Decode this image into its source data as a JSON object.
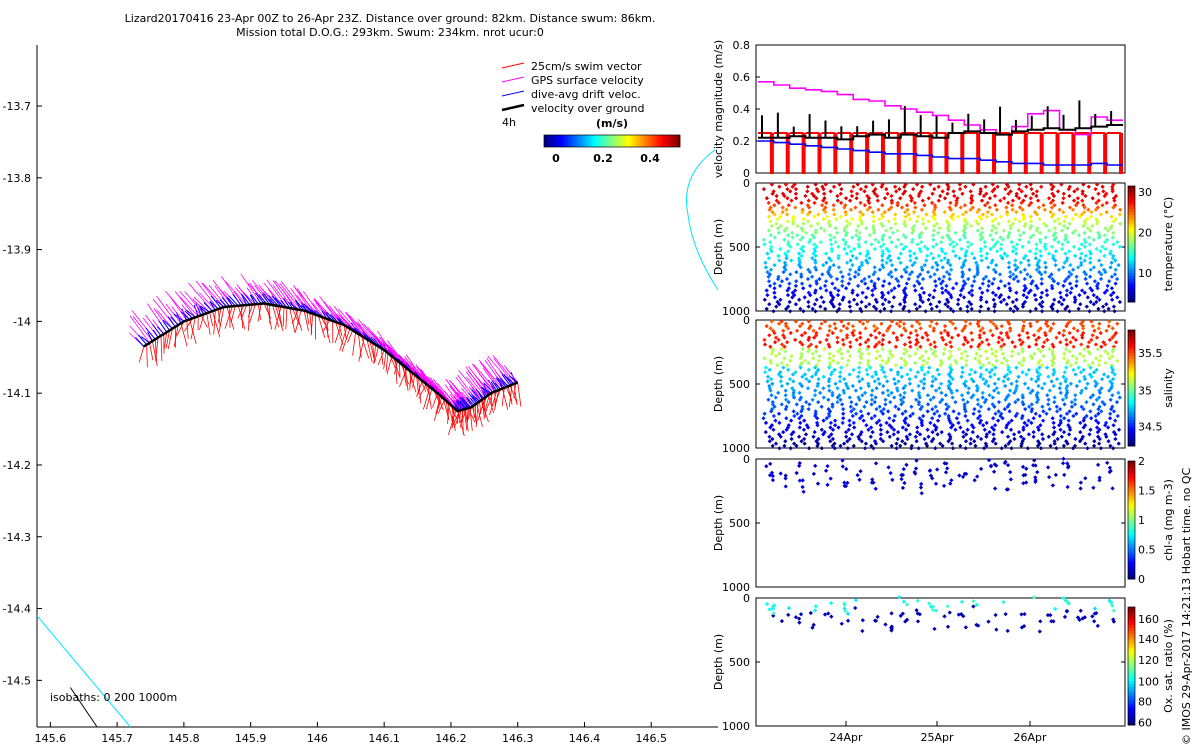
{
  "title_line1": "Lizard20170416 23-Apr 00Z to 26-Apr 23Z. Distance over ground: 82km. Distance swum: 86km.",
  "title_line2": "Mission total D.O.G.: 293km. Swum: 234km. nrot ucur:0",
  "side_label": "© IMOS 29-Apr-2017 14:21:13 Hobart time. no QC",
  "colors": {
    "swim": "#ff0000",
    "gps": "#ff00ff",
    "drift": "#0000ff",
    "ground": "#000000",
    "isobath": "#00e5ff"
  },
  "chart_data": [
    {
      "type": "map",
      "name": "track",
      "xlim": [
        145.58,
        146.6
      ],
      "ylim": [
        -14.565,
        -13.615
      ],
      "xticks": [
        "145.6",
        "145.7",
        "145.8",
        "145.9",
        "146",
        "146.1",
        "146.2",
        "146.3",
        "146.4",
        "146.5"
      ],
      "yticks": [
        "-13.7",
        "-13.8",
        "-13.9",
        "-14",
        "-14.1",
        "-14.2",
        "-14.3",
        "-14.4",
        "-14.5"
      ],
      "legend": [
        "25cm/s swim vector",
        "GPS surface velocity",
        "dive-avg drift veloc.",
        "velocity over ground"
      ],
      "legend_scale_label": "4h",
      "colorbar_label": "(m/s)",
      "colorbar_ticks": [
        "0",
        "0.2",
        "0.4"
      ],
      "isobaths_label": "isobaths: 0   200  1000m",
      "track": [
        [
          145.74,
          -14.035
        ],
        [
          145.8,
          -14.0
        ],
        [
          145.86,
          -13.98
        ],
        [
          145.92,
          -13.975
        ],
        [
          145.98,
          -13.985
        ],
        [
          146.04,
          -14.005
        ],
        [
          146.1,
          -14.04
        ],
        [
          146.14,
          -14.07
        ],
        [
          146.18,
          -14.1
        ],
        [
          146.21,
          -14.125
        ],
        [
          146.23,
          -14.12
        ],
        [
          146.26,
          -14.1
        ],
        [
          146.3,
          -14.085
        ]
      ],
      "isobath_1000": [
        [
          145.58,
          -14.41
        ],
        [
          145.72,
          -14.565
        ]
      ],
      "isobath_0": [
        [
          145.63,
          -14.51
        ],
        [
          145.67,
          -14.565
        ]
      ]
    },
    {
      "type": "line",
      "name": "velocity",
      "ylabel": "velocity magnitude (m/s)",
      "ylim": [
        0,
        0.8
      ],
      "yticks": [
        "0",
        "0.2",
        "0.4",
        "0.6",
        "0.8"
      ],
      "series": [
        {
          "name": "GPS surface velocity",
          "values": [
            0.57,
            0.55,
            0.53,
            0.52,
            0.51,
            0.49,
            0.46,
            0.45,
            0.42,
            0.4,
            0.38,
            0.36,
            0.33,
            0.3,
            0.27,
            0.24,
            0.29,
            0.37,
            0.39,
            0.27,
            0.24,
            0.35,
            0.33
          ]
        },
        {
          "name": "velocity over ground",
          "values": [
            0.22,
            0.22,
            0.23,
            0.22,
            0.22,
            0.21,
            0.23,
            0.24,
            0.22,
            0.24,
            0.23,
            0.22,
            0.25,
            0.26,
            0.25,
            0.24,
            0.26,
            0.27,
            0.28,
            0.27,
            0.28,
            0.29,
            0.3
          ]
        },
        {
          "name": "swim",
          "values": [
            0.25,
            0.25,
            0.25,
            0.25,
            0.25,
            0.25,
            0.25,
            0.25,
            0.25,
            0.25,
            0.25,
            0.25,
            0.25,
            0.25,
            0.25,
            0.25,
            0.25,
            0.25,
            0.25,
            0.25,
            0.25,
            0.25,
            0.25
          ]
        },
        {
          "name": "dive-avg drift veloc.",
          "values": [
            0.2,
            0.19,
            0.18,
            0.17,
            0.16,
            0.15,
            0.14,
            0.13,
            0.12,
            0.12,
            0.11,
            0.1,
            0.09,
            0.09,
            0.08,
            0.07,
            0.06,
            0.06,
            0.05,
            0.05,
            0.05,
            0.06,
            0.05
          ]
        }
      ]
    },
    {
      "type": "scatter",
      "name": "temperature",
      "ylabel": "Depth (m)",
      "yticks": [
        "0",
        "500",
        "1000"
      ],
      "ylim": [
        0,
        1000
      ],
      "profiles": 24,
      "max_depth": 1000,
      "colorbar_label": "temperature (°C)",
      "colorbar_ticks": [
        "30",
        "20",
        "10"
      ],
      "clim": [
        2,
        30
      ]
    },
    {
      "type": "scatter",
      "name": "salinity",
      "ylabel": "Depth (m)",
      "yticks": [
        "0",
        "500",
        "1000"
      ],
      "ylim": [
        0,
        1000
      ],
      "profiles": 24,
      "max_depth": 1000,
      "colorbar_label": "salinity",
      "colorbar_ticks": [
        "35.5",
        "35",
        "34.5"
      ],
      "clim": [
        34.3,
        35.9
      ]
    },
    {
      "type": "scatter",
      "name": "chla",
      "ylabel": "Depth (m)",
      "yticks": [
        "0",
        "500",
        "1000"
      ],
      "ylim": [
        0,
        1000
      ],
      "colorbar_label": "chl-a (mg m-3)",
      "colorbar_ticks": [
        "2",
        "1.5",
        "1",
        "0.5",
        "0"
      ],
      "clim": [
        0,
        2
      ]
    },
    {
      "type": "scatter",
      "name": "oxygen",
      "ylabel": "Depth (m)",
      "yticks": [
        "0",
        "500",
        "1000"
      ],
      "ylim": [
        0,
        1000
      ],
      "xticks": [
        "24Apr",
        "25Apr",
        "26Apr"
      ],
      "colorbar_label": "Ox. sat. ratio (%)",
      "colorbar_ticks": [
        "160",
        "140",
        "120",
        "100",
        "80",
        "60"
      ],
      "clim": [
        60,
        170
      ]
    }
  ]
}
